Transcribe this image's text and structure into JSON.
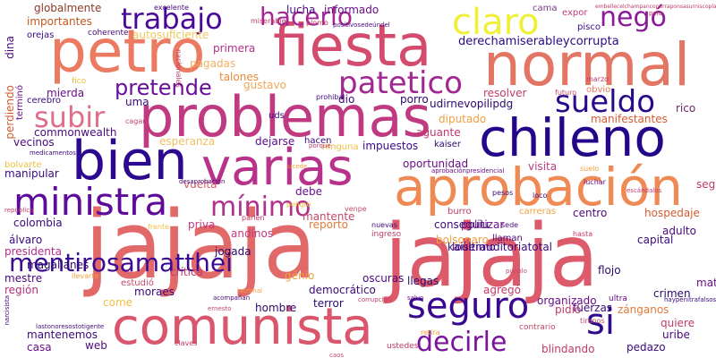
{
  "words": [
    {
      "text": "jajaja",
      "color": "#e2696a"
    },
    {
      "text": "jajaja",
      "color": "#dd5a6a"
    },
    {
      "text": "normal",
      "color": "#e37564"
    },
    {
      "text": "fiesta",
      "color": "#d44c6d"
    },
    {
      "text": "petro",
      "color": "#eb7a61"
    },
    {
      "text": "problemas",
      "color": "#c03a82"
    },
    {
      "text": "chileno",
      "color": "#24068a"
    },
    {
      "text": "aprobación",
      "color": "#f08a55"
    },
    {
      "text": "varias",
      "color": "#b8318a"
    },
    {
      "text": "bien",
      "color": "#2c0790"
    },
    {
      "text": "comunista",
      "color": "#d9566d"
    },
    {
      "text": "ministra",
      "color": "#5e0a9a"
    },
    {
      "text": "claro",
      "color": "#f0f038"
    },
    {
      "text": "trabajo",
      "color": "#4a089a"
    },
    {
      "text": "hacerlo",
      "color": "#a62596"
    },
    {
      "text": "negó",
      "color": "#8a1a98"
    },
    {
      "text": "patetico",
      "color": "#a02890"
    },
    {
      "text": "subir",
      "color": "#e06d8a"
    },
    {
      "text": "sueldo",
      "color": "#2a0a8a"
    },
    {
      "text": "pretende",
      "color": "#6a0f9a"
    },
    {
      "text": "mínimo",
      "color": "#b0308a"
    },
    {
      "text": "seguro",
      "color": "#3a0890"
    },
    {
      "text": "mentirosamatthei",
      "color": "#3b0a92"
    },
    {
      "text": "si",
      "color": "#2e0a8c"
    },
    {
      "text": "decirle",
      "color": "#7a149c"
    },
    {
      "text": "derechamiserableycorrupta",
      "color": "#2c0a84"
    },
    {
      "text": "globalmente",
      "color": "#8a3a2a"
    },
    {
      "text": "importantes",
      "color": "#c2581e"
    },
    {
      "text": "autosuficiente",
      "color": "#f2c75a"
    },
    {
      "text": "pagadas",
      "color": "#f0b060"
    },
    {
      "text": "talones",
      "color": "#e88a3a"
    },
    {
      "text": "primera",
      "color": "#b0308a"
    },
    {
      "text": "gustavo",
      "color": "#f2a65a"
    },
    {
      "text": "informado",
      "color": "#6a0f8a"
    },
    {
      "text": "lucha",
      "color": "#4a0a7a"
    },
    {
      "text": "cama",
      "color": "#7a3a8a"
    },
    {
      "text": "expor",
      "color": "#c23a82"
    },
    {
      "text": "pisco",
      "color": "#3a0a8a"
    },
    {
      "text": "mierda",
      "color": "#6a0f8a"
    },
    {
      "text": "commonwealth",
      "color": "#4a0a7a"
    },
    {
      "text": "esperanza",
      "color": "#f0c060"
    },
    {
      "text": "dejarse",
      "color": "#5a0a8a"
    },
    {
      "text": "impuestos",
      "color": "#3a0a8a"
    },
    {
      "text": "kaiser",
      "color": "#2a0a6a"
    },
    {
      "text": "aguante",
      "color": "#c2386e"
    },
    {
      "text": "diputado",
      "color": "#f0a040"
    },
    {
      "text": "udirnevopilipdg",
      "color": "#2a0a6a"
    },
    {
      "text": "resolver",
      "color": "#c03a6a"
    },
    {
      "text": "obvio",
      "color": "#e87a5a"
    },
    {
      "text": "manifestantes",
      "color": "#d85a30"
    },
    {
      "text": "rico",
      "color": "#6a2a6a"
    },
    {
      "text": "oportunidad",
      "color": "#6a0f8a"
    },
    {
      "text": "visita",
      "color": "#c03a82"
    },
    {
      "text": "vecinos",
      "color": "#4a0a7a"
    },
    {
      "text": "manipular",
      "color": "#3a0a7a"
    },
    {
      "text": "bolvarte",
      "color": "#f0c040"
    },
    {
      "text": "colombia",
      "color": "#3a0a7a"
    },
    {
      "text": "vuelta",
      "color": "#d85a6a"
    },
    {
      "text": "mantente",
      "color": "#c04a6a"
    },
    {
      "text": "debe",
      "color": "#6a0f8a"
    },
    {
      "text": "conseguiu",
      "color": "#3a0a7a"
    },
    {
      "text": "centro",
      "color": "#4a0a7a"
    },
    {
      "text": "hospedaje",
      "color": "#d85a30"
    },
    {
      "text": "bolsonaro",
      "color": "#f0a040"
    },
    {
      "text": "reporto",
      "color": "#e07a3a"
    },
    {
      "text": "politizar",
      "color": "#6a0f8a"
    },
    {
      "text": "priva",
      "color": "#c03a82"
    },
    {
      "text": "álvaro",
      "color": "#3a0a7a"
    },
    {
      "text": "presidenta",
      "color": "#b0308a"
    },
    {
      "text": "magallanes",
      "color": "#2a0a6a"
    },
    {
      "text": "mestre",
      "color": "#4a0a7a"
    },
    {
      "text": "región",
      "color": "#b0307a"
    },
    {
      "text": "jogada",
      "color": "#2a0a6a"
    },
    {
      "text": "moraes",
      "color": "#3a0a7a"
    },
    {
      "text": "crítica",
      "color": "#c03a6a"
    },
    {
      "text": "oscuras",
      "color": "#4a0a7a"
    },
    {
      "text": "llegas",
      "color": "#2a0a6a"
    },
    {
      "text": "democrático",
      "color": "#3a0a7a"
    },
    {
      "text": "terror",
      "color": "#2a0a6a"
    },
    {
      "text": "agregó",
      "color": "#c03a6a"
    },
    {
      "text": "hombre",
      "color": "#2a0a6a"
    },
    {
      "text": "come",
      "color": "#f0c040"
    },
    {
      "text": "mantenemos",
      "color": "#3a0a7a"
    },
    {
      "text": "casa",
      "color": "#6a0f8a"
    },
    {
      "text": "web",
      "color": "#4a0a7a"
    },
    {
      "text": "blindando",
      "color": "#c03a6a"
    },
    {
      "text": "pedazo",
      "color": "#3a0a7a"
    },
    {
      "text": "uribe",
      "color": "#4a0a7a"
    },
    {
      "text": "quiere",
      "color": "#c03a6a"
    },
    {
      "text": "zánganos",
      "color": "#e07a3a"
    },
    {
      "text": "crimen",
      "color": "#2a0a6a"
    },
    {
      "text": "adulto",
      "color": "#4a0a7a"
    },
    {
      "text": "capital",
      "color": "#3a0a7a"
    },
    {
      "text": "matheson",
      "color": "#6a0f8a"
    },
    {
      "text": "seguirá",
      "color": "#c03a6a"
    },
    {
      "text": "flojo",
      "color": "#2a0a6a"
    },
    {
      "text": "fuerzas",
      "color": "#3a0a7a"
    },
    {
      "text": "pidió",
      "color": "#c03a6a"
    },
    {
      "text": "organizado",
      "color": "#6a0f8a"
    },
    {
      "text": "loúltimo",
      "color": "#4a0a7a"
    },
    {
      "text": "gênio",
      "color": "#f0a040"
    },
    {
      "text": "andinos",
      "color": "#c03a82"
    },
    {
      "text": "estudió",
      "color": "#c04a6a"
    },
    {
      "text": "uma",
      "color": "#3a0a7a"
    },
    {
      "text": "dio",
      "color": "#3a0a7a"
    },
    {
      "text": "porro",
      "color": "#2a0a6a"
    },
    {
      "text": "hacen",
      "color": "#3a0a7a"
    },
    {
      "text": "uds",
      "color": "#3a0a7a"
    },
    {
      "text": "ninguna",
      "color": "#f0c040"
    },
    {
      "text": "burro",
      "color": "#c03a6a"
    },
    {
      "text": "llaman",
      "color": "#4a0a7a"
    },
    {
      "text": "ingreso",
      "color": "#c03a6a"
    },
    {
      "text": "carreras",
      "color": "#f0a040"
    },
    {
      "text": "ustedes",
      "color": "#c03a6a"
    },
    {
      "text": "contrario",
      "color": "#c04a6a"
    },
    {
      "text": "kaiserauditoriatotal",
      "color": "#3a0a7a"
    },
    {
      "text": "ultra",
      "color": "#6a0f8a"
    },
    {
      "text": "cerebro",
      "color": "#3a0a7a"
    },
    {
      "text": "perdiendo",
      "color": "#d85a30"
    },
    {
      "text": "terminó",
      "color": "#6a0f8a"
    },
    {
      "text": "dina",
      "color": "#4a0a7a"
    },
    {
      "text": "orejas",
      "color": "#3a0a7a"
    },
    {
      "text": "coherente",
      "color": "#4a0a7a"
    },
    {
      "text": "excelente",
      "color": "#4a0a7a"
    },
    {
      "text": "miserables",
      "color": "#c03a6a"
    },
    {
      "text": "plomo",
      "color": "#c03a6a"
    },
    {
      "text": "nacionales",
      "color": "#c03a6a"
    },
    {
      "text": "futuro",
      "color": "#c04a6a"
    },
    {
      "text": "marzo",
      "color": "#c03a6a"
    },
    {
      "text": "fico",
      "color": "#f0c040"
    },
    {
      "text": "cagan",
      "color": "#c04a6a"
    },
    {
      "text": "prohiba",
      "color": "#3a0a7a"
    },
    {
      "text": "medicamentos",
      "color": "#3a0a7a"
    },
    {
      "text": "desaprobación",
      "color": "#4a0a7a"
    },
    {
      "text": "aprobaciónpresidencial",
      "color": "#6a0f8a"
    },
    {
      "text": "escándalos",
      "color": "#c03a6a"
    },
    {
      "text": "lucede",
      "color": "#f0a040"
    },
    {
      "text": "pueblo",
      "color": "#c04a6a"
    },
    {
      "text": "acompañan",
      "color": "#4a0a7a"
    },
    {
      "text": "corrupción",
      "color": "#c03a6a"
    },
    {
      "text": "caos",
      "color": "#c04a6a"
    },
    {
      "text": "lastonoresostotigente",
      "color": "#4a0a7a"
    },
    {
      "text": "lacrimal",
      "color": "#f0a040"
    },
    {
      "text": "salvo",
      "color": "#6a0f8a"
    },
    {
      "text": "haypenitrafalsos",
      "color": "#3a0a7a"
    },
    {
      "text": "pela",
      "color": "#c03a6a"
    },
    {
      "text": "positivosedeúndel",
      "color": "#4a0a7a"
    },
    {
      "text": "ernesto",
      "color": "#c04a6a"
    },
    {
      "text": "porque",
      "color": "#c03a6a"
    },
    {
      "text": "llevarte",
      "color": "#f0a040"
    },
    {
      "text": "parlen",
      "color": "#c03a6a"
    },
    {
      "text": "nuevas",
      "color": "#3a0a7a"
    },
    {
      "text": "frente",
      "color": "#f0c040"
    },
    {
      "text": "hasta",
      "color": "#c03a6a"
    },
    {
      "text": "venpe",
      "color": "#c04a6a"
    },
    {
      "text": "luchar",
      "color": "#6a0f8a"
    },
    {
      "text": "sede",
      "color": "#4a0a7a"
    },
    {
      "text": "suelo",
      "color": "#f0a040"
    },
    {
      "text": "república",
      "color": "#c03a6a"
    },
    {
      "text": "narcisista",
      "color": "#3a0a7a"
    },
    {
      "text": "loco",
      "color": "#4a0a7a"
    },
    {
      "text": "peligro",
      "color": "#f0c040"
    },
    {
      "text": "embellecelchampancoparraponsasurniscoplata",
      "color": "#c03a6a"
    },
    {
      "text": "tiranos",
      "color": "#c04a6a"
    },
    {
      "text": "pesos",
      "color": "#3a0a7a"
    },
    {
      "text": "retira",
      "color": "#f0a040"
    },
    {
      "text": "claves",
      "color": "#c03a6a"
    }
  ]
}
